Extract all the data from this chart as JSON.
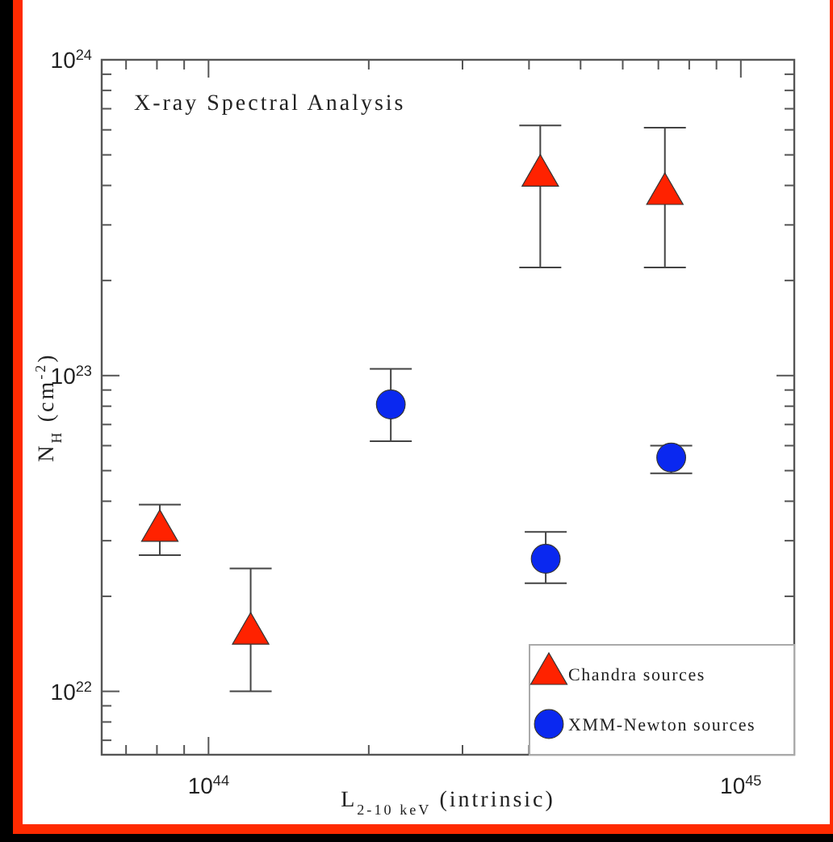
{
  "chart_data": {
    "type": "scatter",
    "title": "X-ray Spectral Analysis",
    "xlabel": "L$_{2-10 keV}$ (intrinsic)",
    "ylabel": "N$_{H}$ (cm$^{-2}$)",
    "log": "xy",
    "xlim": [
      6.3e+43,
      1.26e+45
    ],
    "ylim": [
      6.3e+21,
      1e+24
    ],
    "xticks": [
      {
        "value": 7e+43,
        "label": null
      },
      {
        "value": 8e+43,
        "label": null
      },
      {
        "value": 9e+43,
        "label": null
      },
      {
        "value": 1e+44,
        "label": "10$^{44}$"
      },
      {
        "value": 2e+44,
        "label": null
      },
      {
        "value": 3e+44,
        "label": null
      },
      {
        "value": 4e+44,
        "label": null
      },
      {
        "value": 5e+44,
        "label": null
      },
      {
        "value": 6e+44,
        "label": null
      },
      {
        "value": 7e+44,
        "label": null
      },
      {
        "value": 8e+44,
        "label": null
      },
      {
        "value": 9e+44,
        "label": null
      },
      {
        "value": 1e+45,
        "label": "10$^{45}$"
      }
    ],
    "yticks": [
      {
        "value": 7e+21,
        "label": null
      },
      {
        "value": 8e+21,
        "label": null
      },
      {
        "value": 9e+21,
        "label": null
      },
      {
        "value": 1e+22,
        "label": "10$^{22}$"
      },
      {
        "value": 2e+22,
        "label": null
      },
      {
        "value": 3e+22,
        "label": null
      },
      {
        "value": 4e+22,
        "label": null
      },
      {
        "value": 5e+22,
        "label": null
      },
      {
        "value": 6e+22,
        "label": null
      },
      {
        "value": 7e+22,
        "label": null
      },
      {
        "value": 8e+22,
        "label": null
      },
      {
        "value": 9e+22,
        "label": null
      },
      {
        "value": 1e+23,
        "label": "10$^{23}$"
      },
      {
        "value": 2e+23,
        "label": null
      },
      {
        "value": 3e+23,
        "label": null
      },
      {
        "value": 4e+23,
        "label": null
      },
      {
        "value": 5e+23,
        "label": null
      },
      {
        "value": 6e+23,
        "label": null
      },
      {
        "value": 7e+23,
        "label": null
      },
      {
        "value": 8e+23,
        "label": null
      },
      {
        "value": 9e+23,
        "label": null
      },
      {
        "value": 1e+24,
        "label": "10$^{24}$"
      }
    ],
    "grid": false,
    "legend": "bottom right",
    "series": [
      {
        "name": "Chandra sources",
        "color": "#ff2200",
        "marker": "triangle",
        "x": [
          8.1e+43,
          1.2e+44,
          4.2e+44,
          7.2e+44
        ],
        "values": [
          3.3e+22,
          1.56e+22,
          4.4e+23,
          3.85e+23
        ],
        "errors": [
          [
            2.7e+22,
            3.9e+22
          ],
          [
            1e+22,
            2.45e+22
          ],
          [
            2.2e+23,
            6.2e+23
          ],
          [
            2.2e+23,
            6.1e+23
          ]
        ]
      },
      {
        "name": "XMM-Newton sources",
        "color": "#0a28f0",
        "marker": "circle",
        "x": [
          2.2e+44,
          4.3e+44,
          7.4e+44
        ],
        "values": [
          8.1e+22,
          2.63e+22,
          5.5e+22
        ],
        "errors": [
          [
            6.2e+22,
            1.05e+23
          ],
          [
            2.2e+22,
            3.2e+22
          ],
          [
            4.9e+22,
            6e+22
          ]
        ]
      }
    ]
  }
}
